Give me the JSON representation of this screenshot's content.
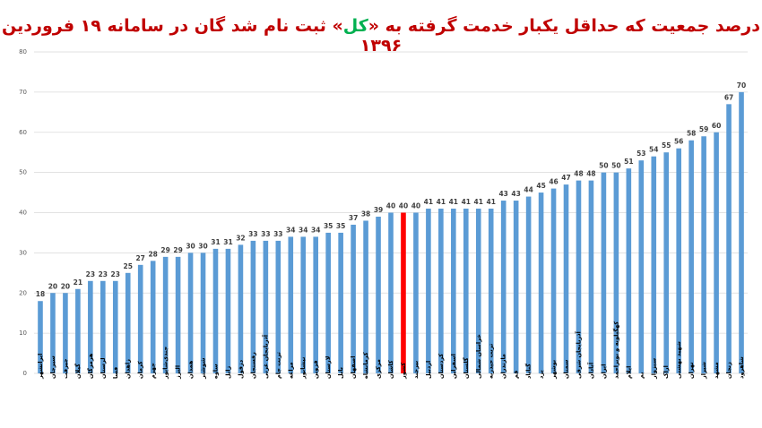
{
  "chart_data": {
    "type": "bar",
    "title": [
      {
        "text": "درصد جمعیت که حداقل یکبار خدمت گرفته به «",
        "color": "#c00000"
      },
      {
        "text": "کل",
        "color": "#00b050"
      },
      {
        "text": "» ثبت نام شد گان در سامانه ۱۹ فروردین ۱۳۹۶",
        "color": "#c00000"
      }
    ],
    "categories": [
      "ایرانشهر",
      "سیرجان",
      "جیرفت",
      "گیلان",
      "هرمزگان",
      "لرستان",
      "فسا",
      "زاهدان",
      "کرمان",
      "جهرم",
      "جندی‌شاپور",
      "البرز",
      "همدان",
      "شوشتر",
      "ساوه",
      "زابل",
      "دزفول",
      "رفسنجان",
      "آذربایجان غربی",
      "تربت جام",
      "مراغه",
      "نیشابور",
      "قزوین",
      "لارستان",
      "بابل",
      "اصفهان",
      "کرمانشاه",
      "مرکزی",
      "کاشان",
      "کشور",
      "بیرجند",
      "اردبیل",
      "کردستان",
      "اسفراین",
      "گلستان",
      "خراسان شمالی",
      "تربت حیدریه",
      "مازندران",
      "قم",
      "گناباد",
      "یزد",
      "بوشهر",
      "سمنان",
      "آذربایجان شرقی",
      "آبادان",
      "ایران",
      "کهگیلویه و بویراحمد",
      "ایلام",
      "بم",
      "سبزوار",
      "اراک",
      "شهید بهشتی",
      "تهران",
      "شیراز",
      "مشهد",
      "زنجان",
      "شاهرود"
    ],
    "values": [
      18,
      20,
      20,
      21,
      23,
      23,
      23,
      25,
      27,
      28,
      29,
      29,
      30,
      30,
      31,
      31,
      32,
      33,
      33,
      33,
      34,
      34,
      34,
      35,
      35,
      37,
      38,
      39,
      40,
      40,
      40,
      41,
      41,
      41,
      41,
      41,
      41,
      43,
      43,
      44,
      45,
      46,
      47,
      48,
      48,
      50,
      50,
      51,
      53,
      54,
      55,
      56,
      58,
      59,
      60,
      67,
      70
    ],
    "colors": [
      "#5b9bd5",
      "#5b9bd5",
      "#5b9bd5",
      "#5b9bd5",
      "#5b9bd5",
      "#5b9bd5",
      "#5b9bd5",
      "#5b9bd5",
      "#5b9bd5",
      "#5b9bd5",
      "#5b9bd5",
      "#5b9bd5",
      "#5b9bd5",
      "#5b9bd5",
      "#5b9bd5",
      "#5b9bd5",
      "#5b9bd5",
      "#5b9bd5",
      "#5b9bd5",
      "#5b9bd5",
      "#5b9bd5",
      "#5b9bd5",
      "#5b9bd5",
      "#5b9bd5",
      "#5b9bd5",
      "#5b9bd5",
      "#5b9bd5",
      "#5b9bd5",
      "#5b9bd5",
      "#ff0000",
      "#5b9bd5",
      "#5b9bd5",
      "#5b9bd5",
      "#5b9bd5",
      "#5b9bd5",
      "#5b9bd5",
      "#5b9bd5",
      "#5b9bd5",
      "#5b9bd5",
      "#5b9bd5",
      "#5b9bd5",
      "#5b9bd5",
      "#5b9bd5",
      "#5b9bd5",
      "#5b9bd5",
      "#5b9bd5",
      "#5b9bd5",
      "#5b9bd5",
      "#5b9bd5",
      "#5b9bd5",
      "#5b9bd5",
      "#5b9bd5",
      "#5b9bd5",
      "#5b9bd5",
      "#5b9bd5",
      "#5b9bd5",
      "#5b9bd5"
    ],
    "ylim": [
      0,
      80
    ],
    "yticks": [
      0,
      10,
      20,
      30,
      40,
      50,
      60,
      70,
      80
    ],
    "grid": true
  }
}
